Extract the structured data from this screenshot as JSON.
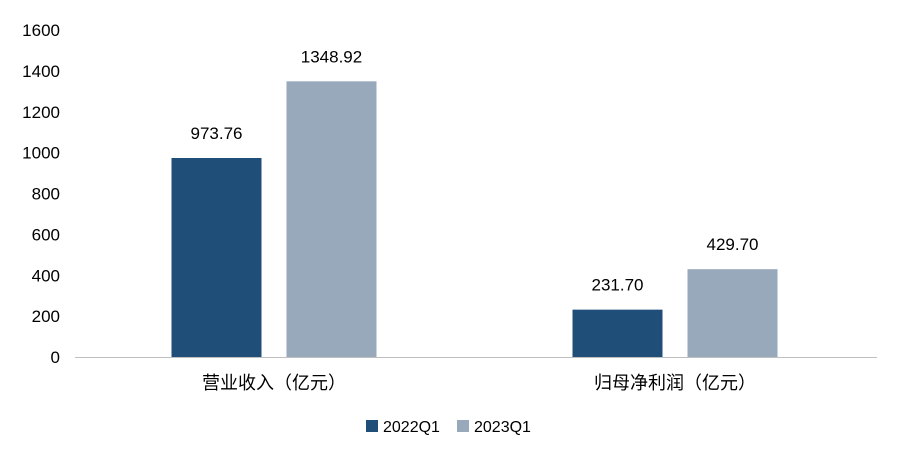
{
  "chart_data": {
    "type": "bar",
    "categories": [
      "营业收入（亿元）",
      "归母净利润（亿元）"
    ],
    "series": [
      {
        "name": "2022Q1",
        "values": [
          973.76,
          231.7
        ],
        "labels": [
          "973.76",
          "231.70"
        ],
        "color": "#1f4e79"
      },
      {
        "name": "2023Q1",
        "values": [
          1348.92,
          429.7
        ],
        "labels": [
          "1348.92",
          "429.70"
        ],
        "color": "#97a9bb"
      }
    ],
    "ylim": [
      0,
      1600
    ],
    "yticks": [
      "0",
      "200",
      "400",
      "600",
      "800",
      "1000",
      "1200",
      "1400",
      "1600"
    ],
    "grid": false,
    "legend": "bottom-center",
    "axis_color": "#bfbfbf"
  }
}
